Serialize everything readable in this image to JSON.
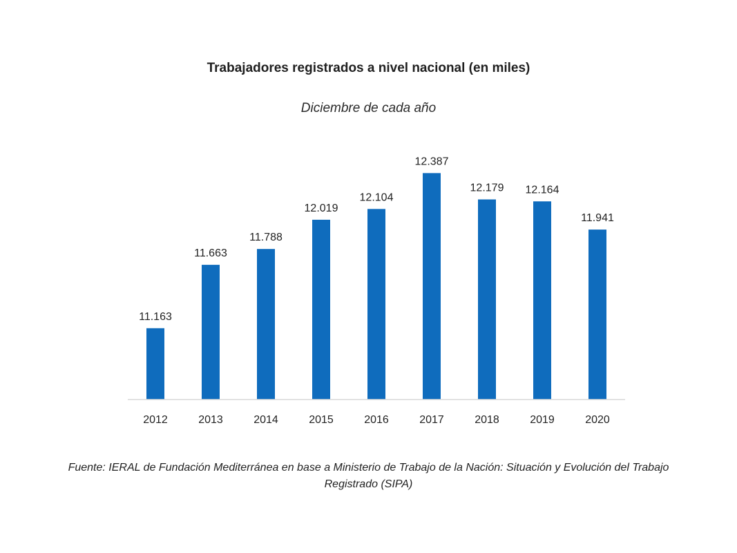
{
  "chart_data": {
    "type": "bar",
    "title": "Trabajadores registrados a nivel nacional (en miles)",
    "subtitle": "Diciembre de cada año",
    "xlabel": "",
    "ylabel": "",
    "categories": [
      "2012",
      "2013",
      "2014",
      "2015",
      "2016",
      "2017",
      "2018",
      "2019",
      "2020"
    ],
    "values": [
      11163,
      11663,
      11788,
      12019,
      12104,
      12387,
      12179,
      12164,
      11941
    ],
    "value_labels": [
      "11.163",
      "11.663",
      "11.788",
      "12.019",
      "12.104",
      "12.387",
      "12.179",
      "12.164",
      "11.941"
    ],
    "ylim": [
      10600,
      12400
    ],
    "grid": false,
    "legend": "none",
    "bar_color": "#0f6cbd",
    "source": "Fuente: IERAL de Fundación Mediterránea en base a Ministerio de Trabajo de la Nación: Situación y Evolución del Trabajo Registrado (SIPA)"
  }
}
